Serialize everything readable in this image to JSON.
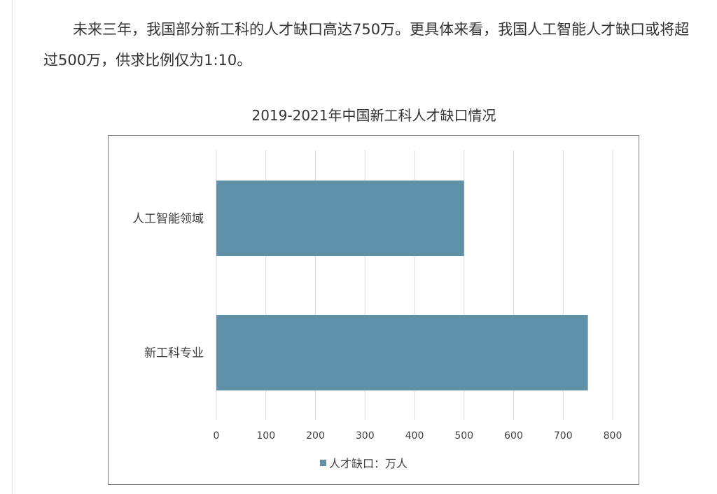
{
  "article": {
    "paragraph": "未来三年，我国部分新工科的人才缺口高达750万。更具体来看，我国人工智能人才缺口或将超过500万，供求比例仅为1:10。"
  },
  "chart_data": {
    "type": "bar",
    "orientation": "horizontal",
    "title": "2019-2021年中国新工科人才缺口情况",
    "categories": [
      "人工智能领域",
      "新工科专业"
    ],
    "series": [
      {
        "name": "人才缺口：万人",
        "values": [
          500,
          750
        ],
        "color": "#5f91a8"
      }
    ],
    "xlim": [
      0,
      800
    ],
    "ticks": [
      "0",
      "100",
      "200",
      "300",
      "400",
      "500",
      "600",
      "700",
      "800"
    ],
    "grid": true,
    "legend": "bottom"
  }
}
